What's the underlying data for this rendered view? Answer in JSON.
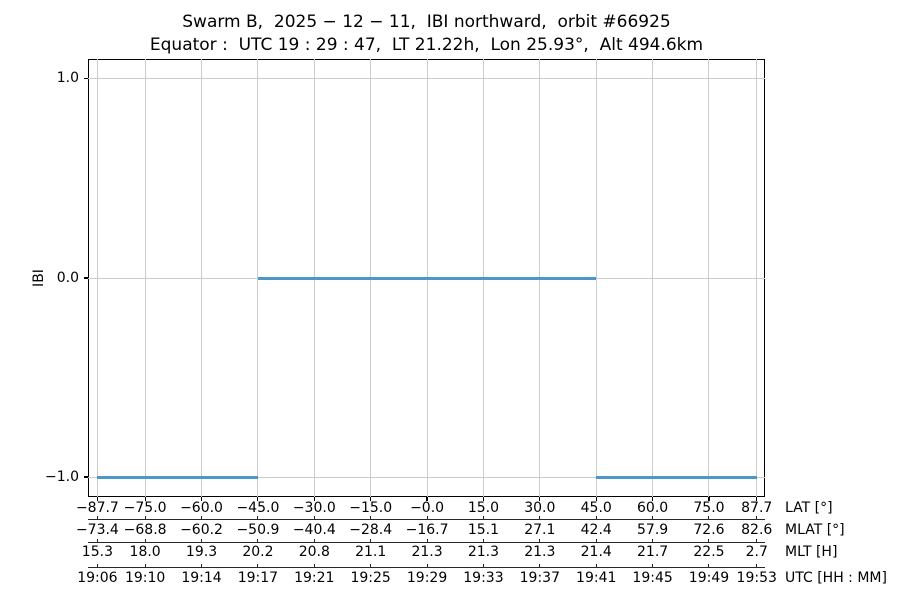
{
  "chart_data": {
    "type": "line",
    "title": "Swarm B,  2025 − 12 − 11,  IBI northward,  orbit #66925",
    "subtitle": "Equator :  UTC 19 : 29 : 47,  LT 21.22h,  Lon 25.93°,  Alt 494.6km",
    "ylabel": "IBI",
    "ylim": [
      -1.1,
      1.1
    ],
    "yticks": [
      {
        "value": 1.0,
        "label": "1.0"
      },
      {
        "value": 0.0,
        "label": "0.0"
      },
      {
        "value": -1.0,
        "label": "−1.0"
      }
    ],
    "grid": true,
    "legend_position": "none",
    "x_axis": {
      "mapping": "linear-in-latitude",
      "lat_lim": [
        -90.2,
        89.9
      ],
      "tick_lats": [
        -87.7,
        -75.0,
        -60.0,
        -45.0,
        -30.0,
        -15.0,
        0.0,
        15.0,
        30.0,
        45.0,
        60.0,
        75.0,
        87.7
      ],
      "rows": [
        {
          "label": "LAT [°]",
          "values": [
            "−87.7",
            "−75.0",
            "−60.0",
            "−45.0",
            "−30.0",
            "−15.0",
            "−0.0",
            "15.0",
            "30.0",
            "45.0",
            "60.0",
            "75.0",
            "87.7"
          ]
        },
        {
          "label": "MLAT [°]",
          "values": [
            "−73.4",
            "−68.8",
            "−60.2",
            "−50.9",
            "−40.4",
            "−28.4",
            "−16.7",
            "15.1",
            "27.1",
            "42.4",
            "57.9",
            "72.6",
            "82.6"
          ]
        },
        {
          "label": "MLT [H]",
          "values": [
            "15.3",
            "18.0",
            "19.3",
            "20.2",
            "20.8",
            "21.1",
            "21.3",
            "21.3",
            "21.3",
            "21.4",
            "21.7",
            "22.5",
            "2.7"
          ]
        },
        {
          "label": "UTC [HH : MM]",
          "values": [
            "19:06",
            "19:10",
            "19:14",
            "19:17",
            "19:21",
            "19:25",
            "19:29",
            "19:33",
            "19:37",
            "19:41",
            "19:45",
            "19:49",
            "19:53"
          ]
        }
      ]
    },
    "series": [
      {
        "name": "IBI",
        "color": "#4c96c8",
        "segments": [
          {
            "value": -1.0,
            "lat_from": -87.7,
            "lat_to": -45.0
          },
          {
            "value": 0.0,
            "lat_from": -45.0,
            "lat_to": 45.0
          },
          {
            "value": -1.0,
            "lat_from": 45.0,
            "lat_to": 87.7
          }
        ]
      }
    ],
    "colors": {
      "line": "#4c96c8",
      "grid": "#cccccc",
      "spine": "#000000",
      "subaxis": "#262626",
      "text": "#000000",
      "background": "#ffffff"
    }
  }
}
